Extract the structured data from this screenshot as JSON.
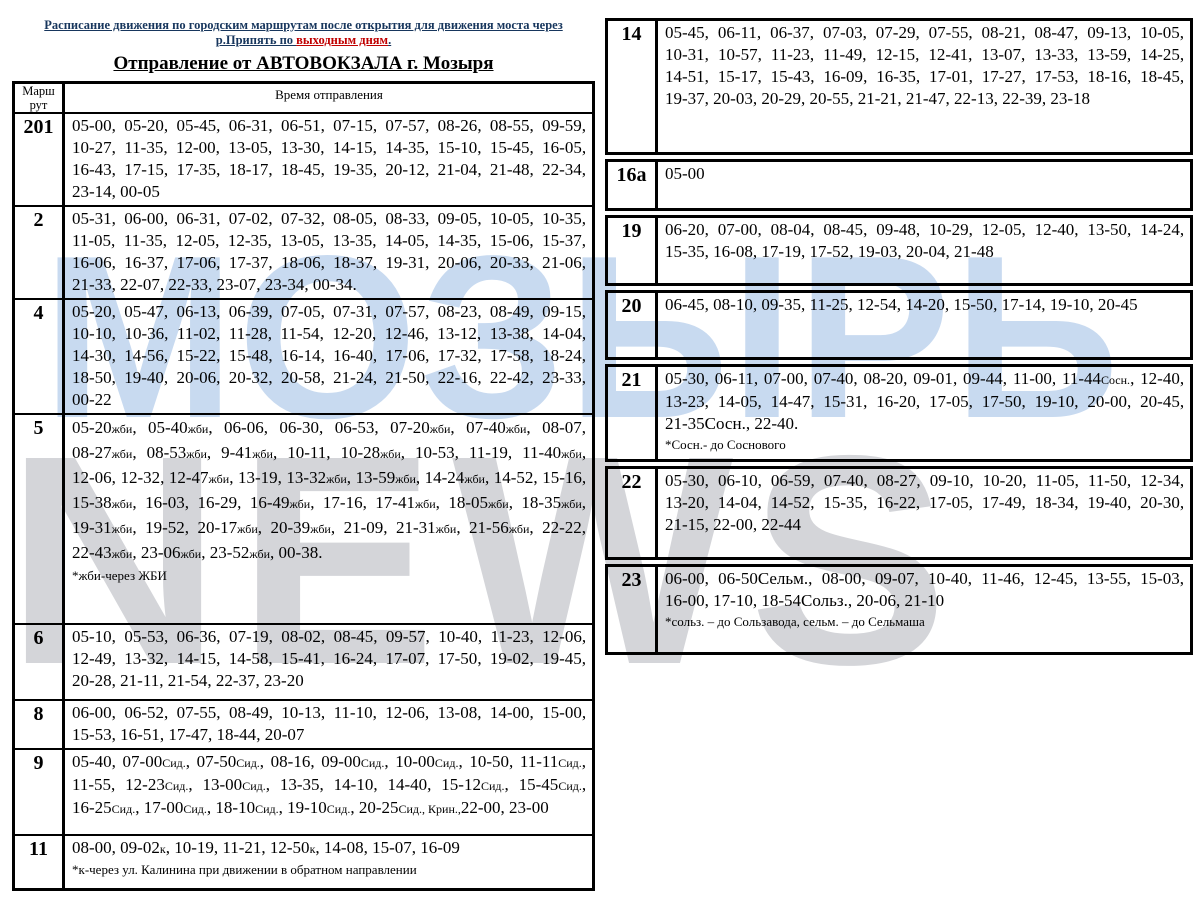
{
  "header": {
    "title_line1": "Расписание движения по городским маршрутам после открытия для движения моста через",
    "title_line2_prefix": "р.Припять по ",
    "title_line2_highlight": "выходным дням",
    "title_line2_suffix": ".",
    "subtitle": "Отправление от АВТОВОКЗАЛА г. Мозыря",
    "title_color": "#17365d",
    "highlight_color": "#c00000"
  },
  "table_header": {
    "route_col": "Марш рут",
    "times_col": "Время отправления"
  },
  "watermark": {
    "word1": "МОЗЫРЬ",
    "word2": "NEWS",
    "color1": "#c8daf0",
    "color2": "#d4d5d9"
  },
  "left_routes": [
    {
      "route": "201",
      "times": "05-00, 05-20, 05-45, 06-31, 06-51, 07-15, 07-57, 08-26, 08-55, 09-59, 10-27, 11-35, 12-00, 13-05, 13-30, 14-15, 14-35, 15-10, 15-45, 16-05, 16-43, 17-15, 17-35, 18-17, 18-45, 19-35, 20-12, 21-04, 21-48, 22-34, 23-14, 00-05"
    },
    {
      "route": "2",
      "times": "05-31, 06-00, 06-31, 07-02, 07-32, 08-05, 08-33, 09-05, 10-05, 10-35, 11-05, 11-35, 12-05, 12-35, 13-05, 13-35, 14-05, 14-35, 15-06, 15-37, 16-06, 16-37, 17-06, 17-37, 18-06, 18-37, 19-31, 20-06, 20-33, 21-06, 21-33, 22-07, 22-33, 23-07, 23-34, 00-34."
    },
    {
      "route": "4",
      "times": "05-20, 05-47, 06-13, 06-39, 07-05, 07-31, 07-57, 08-23, 08-49, 09-15, 10-10, 10-36, 11-02, 11-28, 11-54, 12-20, 12-46, 13-12, 13-38, 14-04, 14-30, 14-56, 15-22, 15-48, 16-14, 16-40, 17-06, 17-32, 17-58, 18-24, 18-50, 19-40, 20-06, 20-32, 20-58, 21-24, 21-50, 22-16, 22-42, 23-33, 00-22"
    },
    {
      "route": "5",
      "times": "05-20~жби~, 05-40~жби~, 06-06, 06-30, 06-53, 07-20~жби~, 07-40~жби~, 08-07, 08-27~жби~, 08-53~жби~, 9-41~жби~, 10-11, 10-28~жби~, 10-53, 11-19, 11-40~жби~, 12-06, 12-32, 12-47~жби~, 13-19, 13-32~жби~, 13-59~жби~, 14-24~жби~, 14-52, 15-16, 15-38~жби~, 16-03, 16-29, 16-49~жби~, 17-16, 17-41~жби~, 18-05~жби~, 18-35~жби~, 19-31~жби~, 19-52, 20-17~жби~, 20-39~жби~, 21-09, 21-31~жби~, 21-56~жби~, 22-22, 22-43~жби~, 23-06~жби~, 23-52~жби~, 00-38.",
      "note": "*жби-через ЖБИ"
    },
    {
      "route": "6",
      "times": "05-10, 05-53, 06-36, 07-19, 08-02, 08-45, 09-57, 10-40, 11-23, 12-06, 12-49, 13-32, 14-15, 14-58, 15-41, 16-24, 17-07, 17-50, 19-02, 19-45, 20-28, 21-11, 21-54, 22-37, 23-20"
    },
    {
      "route": "8",
      "times": "06-00, 06-52, 07-55, 08-49, 10-13, 11-10, 12-06, 13-08, 14-00, 15-00, 15-53, 16-51, 17-47, 18-44, 20-07"
    },
    {
      "route": "9",
      "times": "05-40, 07-00~Сид.~, 07-50~Сид.~, 08-16, 09-00~Сид.~, 10-00~Сид.~, 10-50, 11-11~Сид.~, 11-55, 12-23~Сид.~, 13-00~Сид.~, 13-35, 14-10, 14-40, 15-12~Сид.~, 15-45~Сид.~, 16-25~Сид.~, 17-00~Сид.~, 18-10~Сид.~, 19-10~Сид.~, 20-25~Сид., Крин.,~22-00, 23-00"
    },
    {
      "route": "11",
      "times": "08-00, 09-02~к~, 10-19, 11-21, 12-50~к~, 14-08, 15-07, 16-09",
      "note": "*к-через ул. Калинина при движении в обратном направлении"
    }
  ],
  "right_routes": [
    {
      "route": "14",
      "times": "05-45, 06-11, 06-37, 07-03, 07-29, 07-55, 08-21, 08-47, 09-13, 10-05, 10-31, 10-57, 11-23, 11-49, 12-15, 12-41, 13-07, 13-33, 13-59, 14-25, 14-51, 15-17, 15-43, 16-09, 16-35, 17-01, 17-27, 17-53, 18-16, 18-45, 19-37, 20-03, 20-29, 20-55, 21-21, 21-47, 22-13, 22-39, 23-18"
    },
    {
      "route": "16а",
      "times": "05-00"
    },
    {
      "route": "19",
      "times": "06-20, 07-00, 08-04, 08-45, 09-48, 10-29, 12-05, 12-40, 13-50, 14-24, 15-35, 16-08, 17-19, 17-52, 19-03, 20-04, 21-48"
    },
    {
      "route": "20",
      "times": "06-45, 08-10, 09-35, 11-25, 12-54, 14-20, 15-50, 17-14, 19-10, 20-45"
    },
    {
      "route": "21",
      "times": "05-30, 06-11, 07-00, 07-40, 08-20, 09-01, 09-44, 11-00, 11-44~Сосн.~, 12-40, 13-23, 14-05, 14-47, 15-31, 16-20, 17-05, 17-50, 19-10, 20-00, 20-45, 21-35Сосн., 22-40.",
      "note": "*Сосн.- до Соснового"
    },
    {
      "route": "22",
      "times": "05-30, 06-10, 06-59, 07-40, 08-27, 09-10, 10-20, 11-05, 11-50, 12-34, 13-20, 14-04, 14-52, 15-35, 16-22, 17-05, 17-49, 18-34, 19-40, 20-30, 21-15, 22-00, 22-44"
    },
    {
      "route": "23",
      "times": "06-00, 06-50Сельм., 08-00, 09-07, 10-40, 11-46, 12-45, 13-55, 15-03, 16-00, 17-10, 18-54Сольз., 20-06, 21-10",
      "note": "*сольз. – до Сользавода, сельм. – до Сельмаша"
    }
  ]
}
